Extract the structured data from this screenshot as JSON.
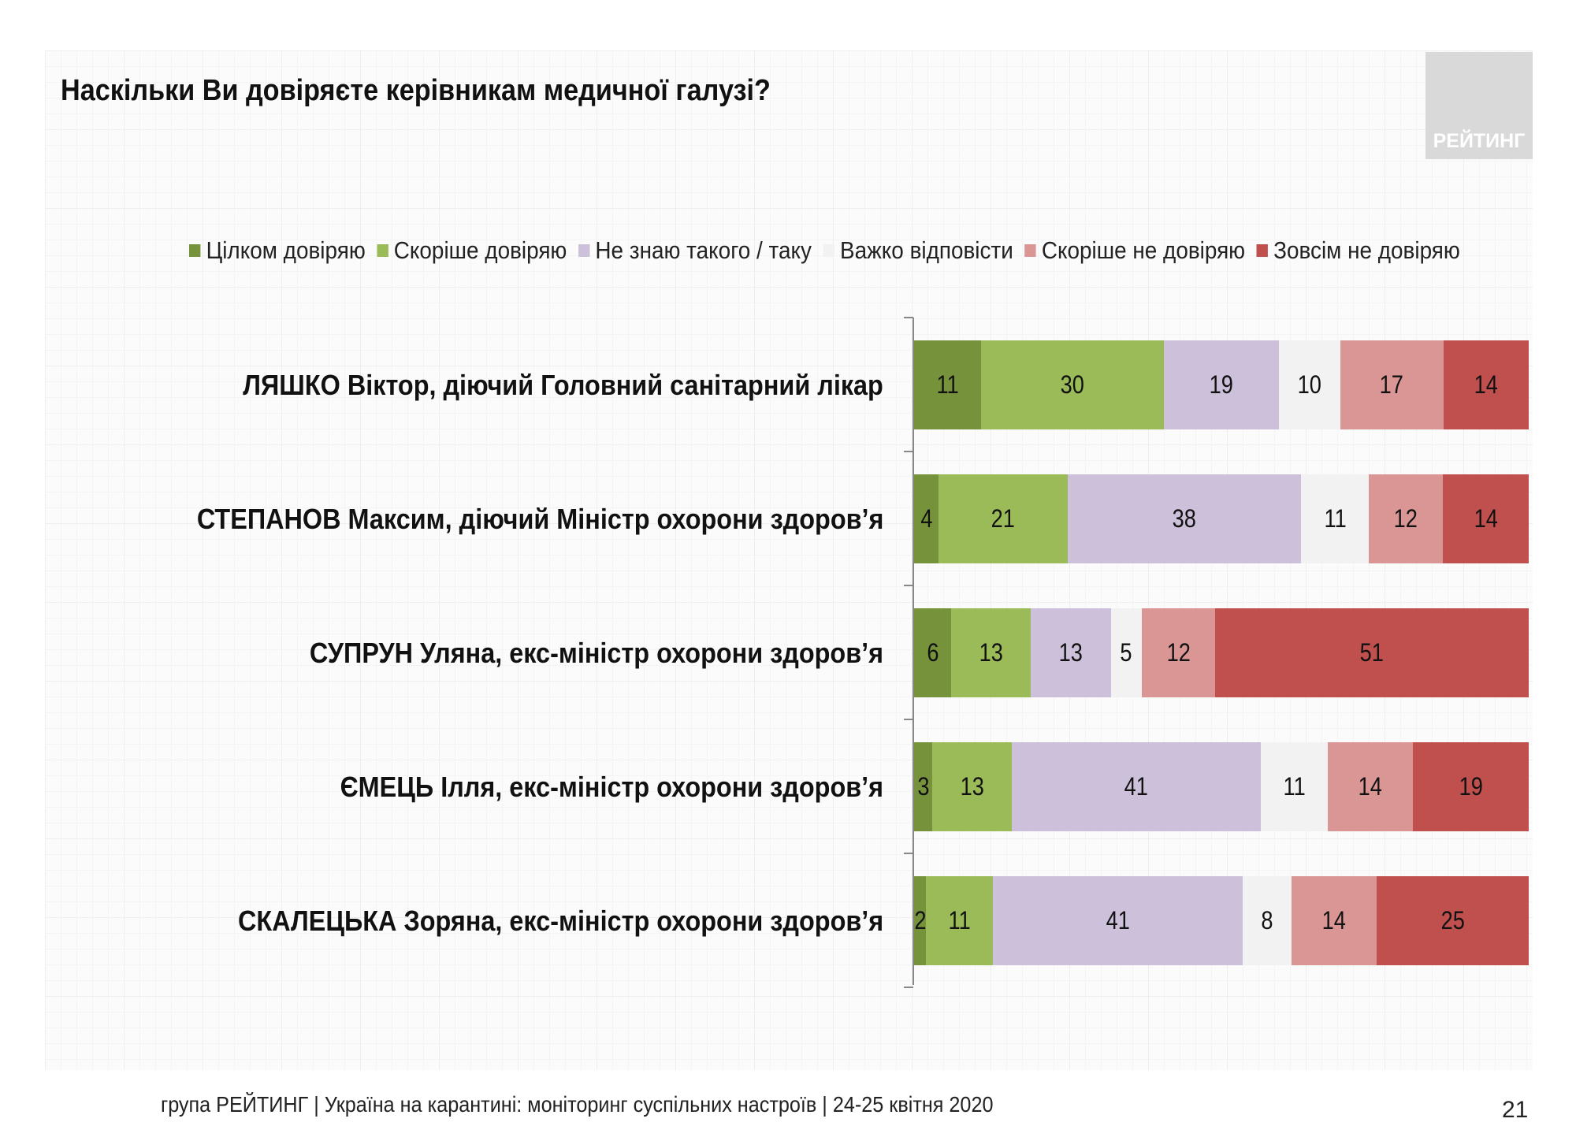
{
  "chart_data": {
    "type": "bar",
    "orientation": "horizontal",
    "stacked": true,
    "title": "Наскільки Ви довіряєте керівникам медичної галузі?",
    "legend_position": "top",
    "categories": [
      "ЛЯШКО Віктор, діючий Головний санітарний лікар",
      "СТЕПАНОВ Максим, діючий Міністр охорони здоров’я",
      "СУПРУН Уляна, екс-міністр охорони здоров’я",
      "ЄМЕЦЬ Ілля, екс-міністр охорони здоров’я",
      "СКАЛЕЦЬКА Зоряна, екс-міністр охорони здоров’я"
    ],
    "series": [
      {
        "name": "Цілком довіряю",
        "color": "#76933c",
        "values": [
          11,
          4,
          6,
          3,
          2
        ]
      },
      {
        "name": "Скоріше довіряю",
        "color": "#9bbb59",
        "values": [
          30,
          21,
          13,
          13,
          11
        ]
      },
      {
        "name": "Не знаю такого / таку",
        "color": "#ccc0da",
        "values": [
          19,
          38,
          13,
          41,
          41
        ]
      },
      {
        "name": "Важко відповісти",
        "color": "#f2f2f2",
        "values": [
          10,
          11,
          5,
          11,
          8
        ]
      },
      {
        "name": "Скоріше не довіряю",
        "color": "#da9694",
        "values": [
          17,
          12,
          12,
          14,
          14
        ]
      },
      {
        "name": "Зовсім не довіряю",
        "color": "#c0504d",
        "values": [
          14,
          14,
          51,
          19,
          25
        ]
      }
    ]
  },
  "logo_text": "РЕЙТИНГ",
  "footer": "група РЕЙТИНГ | Україна на карантині: моніторинг суспільних настроїв  | 24-25 квітня  2020",
  "page_number": "21"
}
